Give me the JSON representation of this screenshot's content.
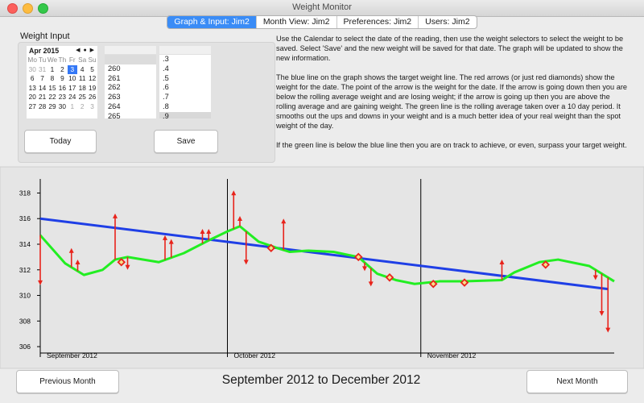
{
  "window": {
    "title": "Weight Monitor"
  },
  "tabs": [
    "Graph & Input: Jim2",
    "Month View: Jim2",
    "Preferences: Jim2",
    "Users: Jim2"
  ],
  "weight_input": {
    "title": "Weight Input",
    "calendar": {
      "month": "Apr 2015",
      "weekdays": [
        "Mo",
        "Tu",
        "We",
        "Th",
        "Fr",
        "Sa",
        "Su"
      ],
      "weeks": [
        [
          30,
          31,
          1,
          2,
          3,
          4,
          5
        ],
        [
          6,
          7,
          8,
          9,
          10,
          11,
          12
        ],
        [
          13,
          14,
          15,
          16,
          17,
          18,
          19
        ],
        [
          20,
          21,
          22,
          23,
          24,
          25,
          26
        ],
        [
          27,
          28,
          29,
          30,
          1,
          2,
          3
        ]
      ]
    },
    "whole": [
      "260",
      "261",
      "262",
      "263",
      "264",
      "265"
    ],
    "decimal": [
      ".3",
      ".4",
      ".5",
      ".6",
      ".7",
      ".8",
      ".9"
    ],
    "buttons": [
      "Today",
      "Save"
    ]
  },
  "instructions": [
    "Use the Calendar to select the date of the reading, then use the weight selectors to select the weight to be saved.  Select 'Save' and the new weight will be saved for that date.  The graph will be updated to show the new information.",
    "The blue line on the graph shows the target weight line.  The red arrows (or just red diamonds) show the weight for the date.  The point of the arrow is the weight for the date.  If the arrow is going down then you are below the rolling average weight and are losing weight; if the arrow is going up then you are above the rolling average and are gaining weight. The green line is the rolling average taken over a 10 day period.  It smooths out the ups and downs in your weight and is a much better idea of your real weight than the spot weight of the day.",
    "If the green line is below the blue line then you are on track to achieve, or even, surpass your target weight."
  ],
  "chart_data": {
    "type": "line",
    "xlim": [
      0,
      92
    ],
    "ylim": [
      305.5,
      319.1
    ],
    "xticks": [
      {
        "value": 0,
        "label": "September 2012"
      },
      {
        "value": 30,
        "label": "October 2012"
      },
      {
        "value": 61,
        "label": "November 2012"
      }
    ],
    "yticks": [
      306,
      308,
      310,
      312,
      314,
      316,
      318
    ],
    "series": [
      {
        "color": "#1f3fe6",
        "marker": "none",
        "x": [
          0,
          91
        ],
        "values": [
          316,
          310.5
        ]
      },
      {
        "color": "#22ee22",
        "marker": "none",
        "x": [
          0,
          4,
          7,
          10,
          12,
          14,
          19,
          23,
          27,
          30,
          32,
          35,
          38,
          40,
          43,
          47,
          50,
          51,
          54,
          57,
          60,
          64,
          68,
          74,
          76,
          80,
          83,
          88,
          92
        ],
        "values": [
          314.7,
          312.5,
          311.6,
          312,
          312.8,
          313,
          312.6,
          313.3,
          314.3,
          315,
          315.4,
          314.2,
          313.7,
          313.4,
          313.5,
          313.4,
          313.1,
          313.0,
          311.7,
          311.2,
          310.9,
          311.1,
          311.1,
          311.2,
          311.8,
          312.6,
          312.8,
          312.3,
          311.1
        ]
      },
      {
        "color": "#e8231b",
        "marker": "arrow",
        "x": [
          0,
          5,
          6,
          12,
          13,
          14,
          20,
          21,
          26,
          27,
          31,
          32,
          33,
          37,
          39,
          51,
          52,
          53,
          56,
          63,
          68,
          74,
          81,
          89,
          90,
          91
        ],
        "values": [
          310.8,
          313.7,
          312.8,
          316.4,
          312.6,
          312,
          314.7,
          314.4,
          315.2,
          315.2,
          318.2,
          316.2,
          312.4,
          313.7,
          316,
          313.0,
          311.9,
          310.7,
          311.4,
          310.9,
          311,
          312.8,
          312.4,
          311.2,
          308.4,
          307.1
        ]
      }
    ]
  },
  "range_label": "September 2012 to December 2012",
  "nav_buttons": [
    "Previous Month",
    "Next Month"
  ]
}
